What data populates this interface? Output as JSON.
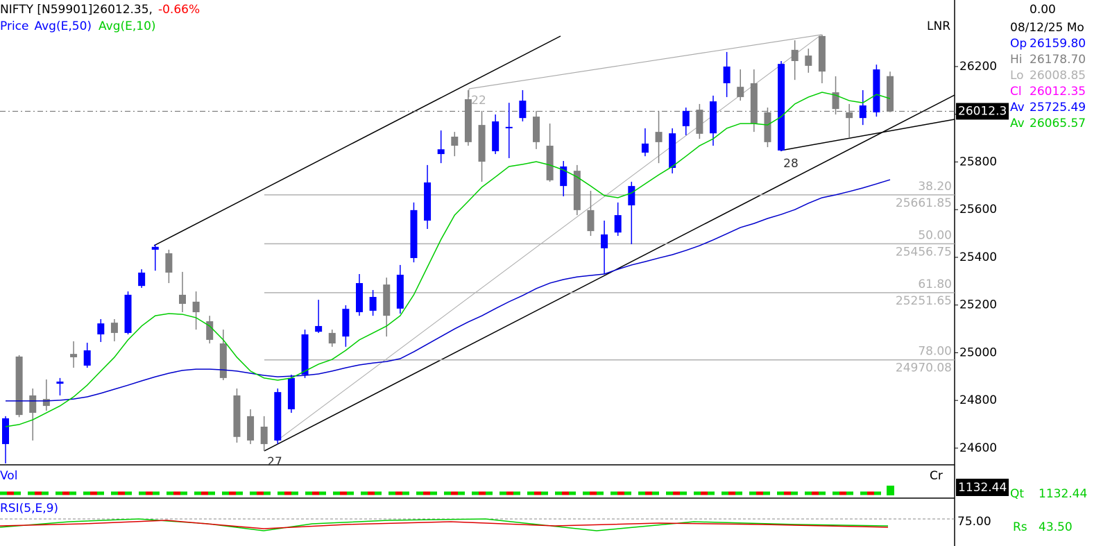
{
  "header": {
    "symbol": "NIFTY [N59901]26012.35,",
    "change": "-0.66%",
    "legend": [
      "Price",
      "Avg(E,50)",
      "Avg(E,10)"
    ],
    "mode": "LNR"
  },
  "info_panel": {
    "value": "0.00",
    "date": "08/12/25 Mo",
    "rows": [
      {
        "label": "Op",
        "value": "26159.80",
        "color": "#0000ff"
      },
      {
        "label": "Hi",
        "value": "26178.70",
        "color": "#808080"
      },
      {
        "label": "Lo",
        "value": "26008.85",
        "color": "#b0b0b0"
      },
      {
        "label": "Cl",
        "value": "26012.35",
        "color": "#ff00ff"
      },
      {
        "label": "Av",
        "value": "25725.49",
        "color": "#0000ff"
      },
      {
        "label": "Av",
        "value": "26065.57",
        "color": "#00cc00"
      }
    ]
  },
  "chart_data": {
    "type": "candlestick",
    "up_color": "#0000ff",
    "down_color": "#808080",
    "open": [
      24617,
      24984,
      24821,
      24806,
      24870,
      24995,
      24946,
      25077,
      25126,
      25083,
      25280,
      25432,
      25417,
      25243,
      25214,
      25132,
      25039,
      24821,
      24734,
      24690,
      24632,
      24763,
      24908,
      25088,
      25083,
      25068,
      25170,
      25176,
      25286,
      25185,
      25397,
      25554,
      25833,
      25906,
      26063,
      25955,
      25845,
      25944,
      25984,
      25990,
      25868,
      25699,
      25763,
      25598,
      25438,
      25504,
      25618,
      25839,
      25926,
      25775,
      25950,
      26019,
      25920,
      26130,
      26115,
      26130,
      26008,
      25848,
      26270,
      26246,
      26328,
      26092,
      26008,
      25984,
      26008,
      26159.8
    ],
    "high": [
      24734,
      24990,
      24850,
      24888,
      24894,
      25048,
      25042,
      25141,
      25141,
      25257,
      25350,
      25455,
      25432,
      25339,
      25257,
      25155,
      25097,
      24850,
      24763,
      24734,
      24850,
      24908,
      25097,
      25222,
      25097,
      25199,
      25330,
      25263,
      25315,
      25368,
      25630,
      25787,
      25932,
      25926,
      26101,
      26014,
      25999,
      26048,
      26101,
      26014,
      25961,
      25804,
      25787,
      25679,
      25554,
      25630,
      25717,
      25941,
      26014,
      25941,
      26028,
      26043,
      26078,
      26261,
      26188,
      26188,
      26028,
      26223,
      26310,
      26275,
      26334,
      26159,
      26043,
      26101,
      26208,
      26178.7
    ],
    "low": [
      24536,
      24730,
      24632,
      24757,
      24821,
      24937,
      24937,
      25045,
      25048,
      25077,
      25272,
      25344,
      25292,
      25170,
      25097,
      25039,
      24885,
      24623,
      24617,
      24588,
      24617,
      24748,
      24894,
      25083,
      25025,
      25025,
      25155,
      25155,
      25068,
      25164,
      25379,
      25519,
      25795,
      25824,
      25868,
      25717,
      25833,
      25816,
      25970,
      25854,
      25717,
      25656,
      25577,
      25490,
      25330,
      25490,
      25455,
      25824,
      25795,
      25752,
      25912,
      25897,
      25868,
      26072,
      26057,
      25926,
      25862,
      25845,
      26144,
      26174,
      26130,
      25999,
      25903,
      25955,
      25990,
      26008.85
    ],
    "close": [
      24725,
      24739,
      24748,
      24777,
      24879,
      24981,
      25010,
      25123,
      25083,
      25243,
      25336,
      25444,
      25336,
      25205,
      25170,
      25054,
      24894,
      24647,
      24632,
      24617,
      24835,
      24894,
      25077,
      25112,
      25039,
      25184,
      25292,
      25234,
      25155,
      25327,
      25598,
      25714,
      25853,
      25868,
      25883,
      25801,
      25970,
      25947,
      26057,
      25883,
      25723,
      25781,
      25598,
      25510,
      25496,
      25577,
      25699,
      25877,
      25883,
      25920,
      26014,
      25918,
      26054,
      26200,
      26072,
      25961,
      25883,
      26211,
      26223,
      26203,
      26179,
      26022,
      25984,
      26037,
      26188,
      26012.35
    ],
    "series": [
      {
        "name": "Avg(E,50)",
        "color": "#0000cc",
        "values": [
          24798,
          24798,
          24798,
          24798,
          24801,
          24806,
          24815,
          24830,
          24847,
          24864,
          24882,
          24899,
          24914,
          24926,
          24931,
          24931,
          24928,
          24923,
          24914,
          24905,
          24899,
          24902,
          24905,
          24911,
          24923,
          24937,
          24949,
          24957,
          24963,
          24975,
          25004,
          25036,
          25068,
          25100,
          25129,
          25155,
          25185,
          25214,
          25240,
          25269,
          25292,
          25307,
          25318,
          25324,
          25330,
          25350,
          25368,
          25382,
          25397,
          25411,
          25429,
          25449,
          25473,
          25499,
          25525,
          25542,
          25563,
          25580,
          25600,
          25627,
          25650,
          25662,
          25676,
          25691,
          25708,
          25725.49
        ]
      },
      {
        "name": "Avg(E,10)",
        "color": "#00cc00",
        "values": [
          24690,
          24699,
          24719,
          24748,
          24777,
          24815,
          24864,
          24923,
          24981,
          25054,
          25112,
          25155,
          25164,
          25161,
          25147,
          25112,
          25054,
          24981,
          24923,
          24894,
          24885,
          24894,
          24923,
          24952,
          24972,
          25010,
          25054,
          25083,
          25112,
          25155,
          25243,
          25359,
          25475,
          25577,
          25635,
          25694,
          25737,
          25781,
          25790,
          25801,
          25787,
          25766,
          25737,
          25699,
          25659,
          25650,
          25670,
          25708,
          25746,
          25781,
          25824,
          25868,
          25897,
          25941,
          25961,
          25961,
          25955,
          25990,
          26043,
          26072,
          26092,
          26080,
          26057,
          26048,
          26083,
          26065.57
        ]
      }
    ],
    "ylim": [
      24530,
      26479
    ],
    "yticks": [
      24600,
      24800,
      25000,
      25200,
      25400,
      25600,
      25800,
      26000,
      26200
    ],
    "price_marker": {
      "value": 26012.35,
      "label": "26012.3"
    },
    "fib_levels": [
      {
        "ratio": "38.20",
        "price": 25661.85
      },
      {
        "ratio": "50.00",
        "price": 25456.75
      },
      {
        "ratio": "61.80",
        "price": 25251.65
      },
      {
        "ratio": "78.00",
        "price": 24970.08
      }
    ],
    "annotations": [
      "22",
      "27",
      "28"
    ]
  },
  "volume_panel": {
    "label": "Vol",
    "unit": "Cr",
    "marker": "1132.44",
    "qt_label": "Qt",
    "qt_value": "1132.44"
  },
  "rsi_panel": {
    "label": "RSI(5,E,9)",
    "level": "75.00",
    "rs_label": "Rs",
    "rs_value": "43.50"
  }
}
